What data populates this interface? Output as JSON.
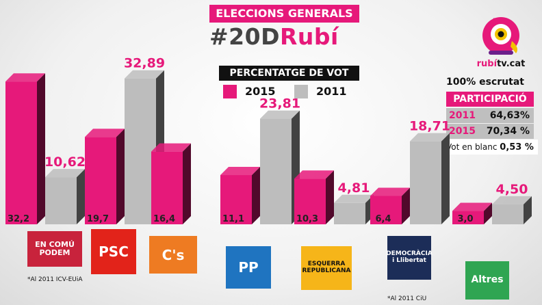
{
  "header": {
    "banner": "ELECCIONS GENERALS",
    "hashtag_part1": "#20D",
    "hashtag_part2": "Rubí"
  },
  "brand": {
    "logo_icon": "rubi-tv-mascot-icon",
    "name_part1": "rubí",
    "name_part2": "tv.cat"
  },
  "legend": {
    "title": "PERCENTATGE DE VOT",
    "items": [
      {
        "label": "2015",
        "color": "#e6197a"
      },
      {
        "label": "2011",
        "color": "#bdbdbd"
      }
    ]
  },
  "stats": {
    "escrutat": "100% escrutat",
    "participacio_title": "PARTICIPACIÓ",
    "participacio": [
      {
        "year": "2011",
        "value": "64,63%"
      },
      {
        "year": "2015",
        "value": "70,34 %"
      }
    ],
    "vot_blanc_label": "Vot en blanc",
    "vot_blanc_value": "0,53 %"
  },
  "parties": [
    {
      "name": "EN COMÚ PODEM",
      "logo_text": "EN COMÚ PODEM",
      "logo_color": "#c8233c",
      "note": "*Al 2011 ICV-EUiA"
    },
    {
      "name": "PSC",
      "logo_text": "PSC",
      "logo_color": "#e2231a",
      "note": ""
    },
    {
      "name": "C's",
      "logo_text": "C's",
      "logo_color": "#ee7b22",
      "note": ""
    },
    {
      "name": "PP",
      "logo_text": "PP",
      "logo_color": "#1f74c0",
      "note": ""
    },
    {
      "name": "ESQUERRA REPUBLICANA",
      "logo_text": "ESQUERRA REPUBLICANA",
      "logo_color": "#f6b519",
      "note": ""
    },
    {
      "name": "DEMOCRÀCIA i LLIBERTAT",
      "logo_text": "DEMOCRÀCIA i Llibertat",
      "logo_color": "#1c2d58",
      "note": "*Al 2011 CiU"
    },
    {
      "name": "Altres",
      "logo_text": "Altres",
      "logo_color": "#2fa552",
      "note": ""
    }
  ],
  "chart_data": {
    "type": "bar",
    "title": "PERCENTATGE DE VOT",
    "categories": [
      "EN COMÚ PODEM",
      "PSC",
      "C's",
      "PP",
      "ESQUERRA REPUBLICANA",
      "DEMOCRÀCIA i LLIBERTAT",
      "Altres"
    ],
    "series": [
      {
        "name": "2015",
        "values": [
          32.2,
          19.7,
          16.4,
          11.1,
          10.3,
          6.4,
          3.0
        ],
        "labels": [
          "32,2",
          "19,7",
          "16,4",
          "11,1",
          "10,3",
          "6,4",
          "3,0"
        ]
      },
      {
        "name": "2011",
        "values": [
          10.62,
          32.89,
          null,
          23.81,
          4.81,
          18.71,
          4.5
        ],
        "labels": [
          "10,62",
          "32,89",
          "",
          "23,81",
          "4,81",
          "18,71",
          "4,50"
        ]
      }
    ],
    "colors": {
      "2015": "#e6197a",
      "2011": "#bdbdbd"
    },
    "ylim": [
      0,
      35
    ],
    "grid": false,
    "legend": "top-center"
  }
}
